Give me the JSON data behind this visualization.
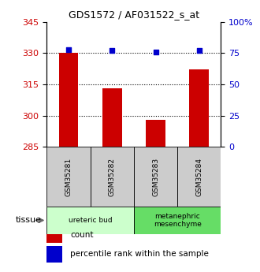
{
  "title": "GDS1572 / AF031522_s_at",
  "samples": [
    "GSM35281",
    "GSM35282",
    "GSM35283",
    "GSM35284"
  ],
  "counts": [
    330,
    313,
    298,
    322
  ],
  "percentiles": [
    78,
    77,
    76,
    77
  ],
  "ylim_left": [
    285,
    345
  ],
  "ylim_right": [
    0,
    100
  ],
  "yticks_left": [
    285,
    300,
    315,
    330,
    345
  ],
  "yticks_right": [
    0,
    25,
    50,
    75,
    100
  ],
  "ytick_labels_right": [
    "0",
    "25",
    "50",
    "75",
    "100%"
  ],
  "bar_color": "#cc0000",
  "dot_color": "#0000cc",
  "bar_bottom": 285,
  "tissue_groups": [
    {
      "label": "ureteric bud",
      "samples": [
        0,
        1
      ],
      "color": "#ccffcc"
    },
    {
      "label": "metanephric\nmesenchyme",
      "samples": [
        2,
        3
      ],
      "color": "#66dd66"
    }
  ],
  "legend_items": [
    {
      "color": "#cc0000",
      "label": "count"
    },
    {
      "color": "#0000cc",
      "label": "percentile rank within the sample"
    }
  ],
  "tissue_label": "tissue",
  "background_color": "#ffffff",
  "sample_bg_color": "#cccccc",
  "grid_lines": [
    300,
    315,
    330
  ]
}
